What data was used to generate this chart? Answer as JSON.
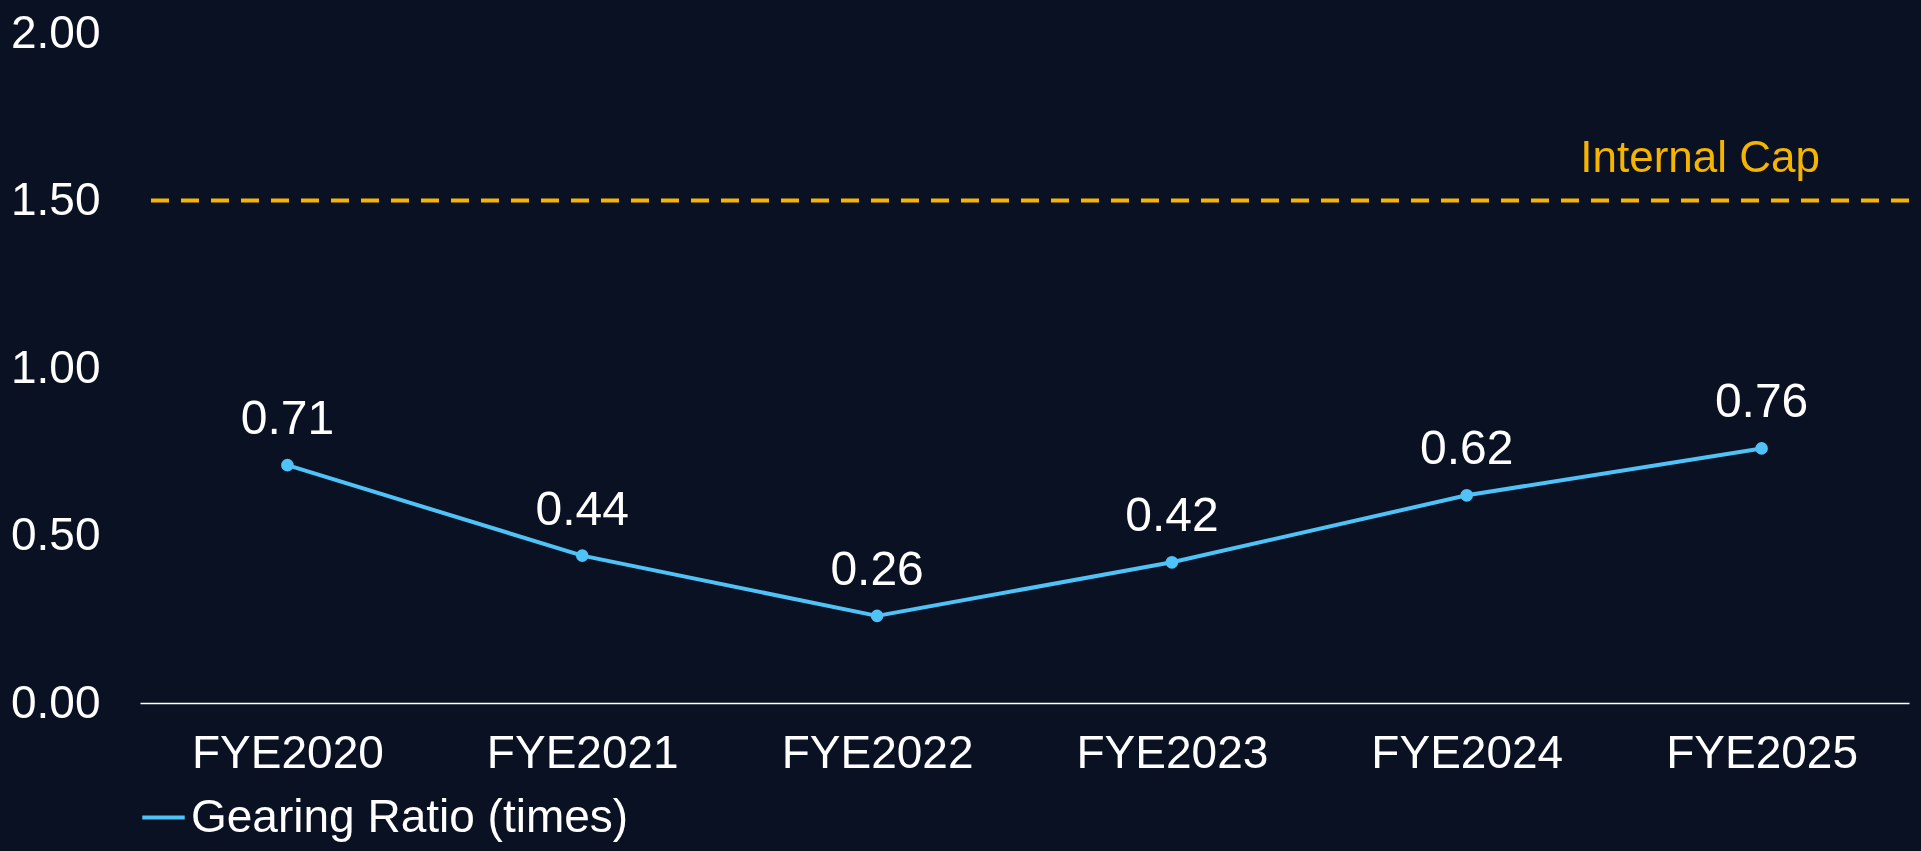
{
  "chart_data": {
    "type": "line",
    "categories": [
      "FYE2020",
      "FYE2021",
      "FYE2022",
      "FYE2023",
      "FYE2024",
      "FYE2025"
    ],
    "series": [
      {
        "name": "Gearing Ratio (times)",
        "color": "#4fc3f7",
        "values": [
          0.71,
          0.44,
          0.26,
          0.42,
          0.62,
          0.76
        ]
      }
    ],
    "ylim": [
      0,
      2
    ],
    "yticks": [
      {
        "value": 0,
        "label": "0.00"
      },
      {
        "value": 0.5,
        "label": "0.50"
      },
      {
        "value": 1,
        "label": "1.00"
      },
      {
        "value": 1.5,
        "label": "1.50"
      },
      {
        "value": 2,
        "label": "2.00"
      }
    ],
    "ref_lines": [
      {
        "axis": "y",
        "value": 1.5,
        "label": "Internal Cap",
        "color": "#f5b400",
        "line_style": "dashed"
      }
    ],
    "data_labels": true,
    "grid": false,
    "legend": "bottom",
    "marker": "circle",
    "line_style": "solid"
  }
}
